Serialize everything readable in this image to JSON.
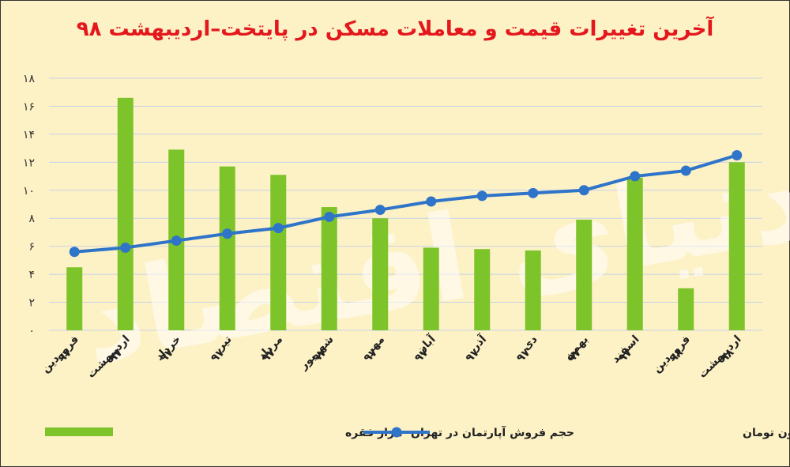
{
  "chart_data": {
    "title": "آخرین تغییرات قیمت و معاملات مسکن در پایتخت–اردیبهشت ۹۸",
    "watermark": "دنیای اقتصاد",
    "ylim": [
      0,
      18
    ],
    "yticks": [
      {
        "value": 0,
        "label": "۰"
      },
      {
        "value": 2,
        "label": "۲"
      },
      {
        "value": 4,
        "label": "۴"
      },
      {
        "value": 6,
        "label": "۶"
      },
      {
        "value": 8,
        "label": "۸"
      },
      {
        "value": 10,
        "label": "۱۰"
      },
      {
        "value": 12,
        "label": "۱۲"
      },
      {
        "value": 14,
        "label": "۱۴"
      },
      {
        "value": 16,
        "label": "۱۶"
      },
      {
        "value": 18,
        "label": "۱۸"
      }
    ],
    "categories": [
      {
        "l1": "فروردین",
        "l2": "۹۷"
      },
      {
        "l1": "اردیبهشت",
        "l2": "۹۷"
      },
      {
        "l1": "خرداد",
        "l2": "۹۷"
      },
      {
        "l1": "تیر",
        "l2": "۹۷"
      },
      {
        "l1": "مرداد",
        "l2": "۹۷"
      },
      {
        "l1": "شهریور",
        "l2": "۹۷"
      },
      {
        "l1": "مهر",
        "l2": "۹۷"
      },
      {
        "l1": "آبان",
        "l2": "۹۷"
      },
      {
        "l1": "آذر",
        "l2": "۹۷"
      },
      {
        "l1": "دی",
        "l2": "۹۷"
      },
      {
        "l1": "بهمن",
        "l2": "۹۷"
      },
      {
        "l1": "اسفند",
        "l2": "۹۷"
      },
      {
        "l1": "فروردین",
        "l2": "۹۸"
      },
      {
        "l1": "اردیبهشت",
        "l2": "۹۸"
      }
    ],
    "series": [
      {
        "name": "حجم فروش آپارتمان در تهران- هزار فقره",
        "type": "bar",
        "color": "#7dc42a",
        "values": [
          4.5,
          16.6,
          12.9,
          11.7,
          11.1,
          8.8,
          8.0,
          5.9,
          5.8,
          5.7,
          7.9,
          10.9,
          3.0,
          12.0
        ]
      },
      {
        "name": "متوسط قیمت مسکن در تهران- مترمربع به میلیون تومان",
        "type": "line",
        "color": "#2e74c9",
        "values": [
          5.6,
          5.9,
          6.4,
          6.9,
          7.3,
          8.1,
          8.6,
          9.2,
          9.6,
          9.8,
          10.0,
          11.0,
          11.4,
          12.5
        ]
      }
    ]
  }
}
